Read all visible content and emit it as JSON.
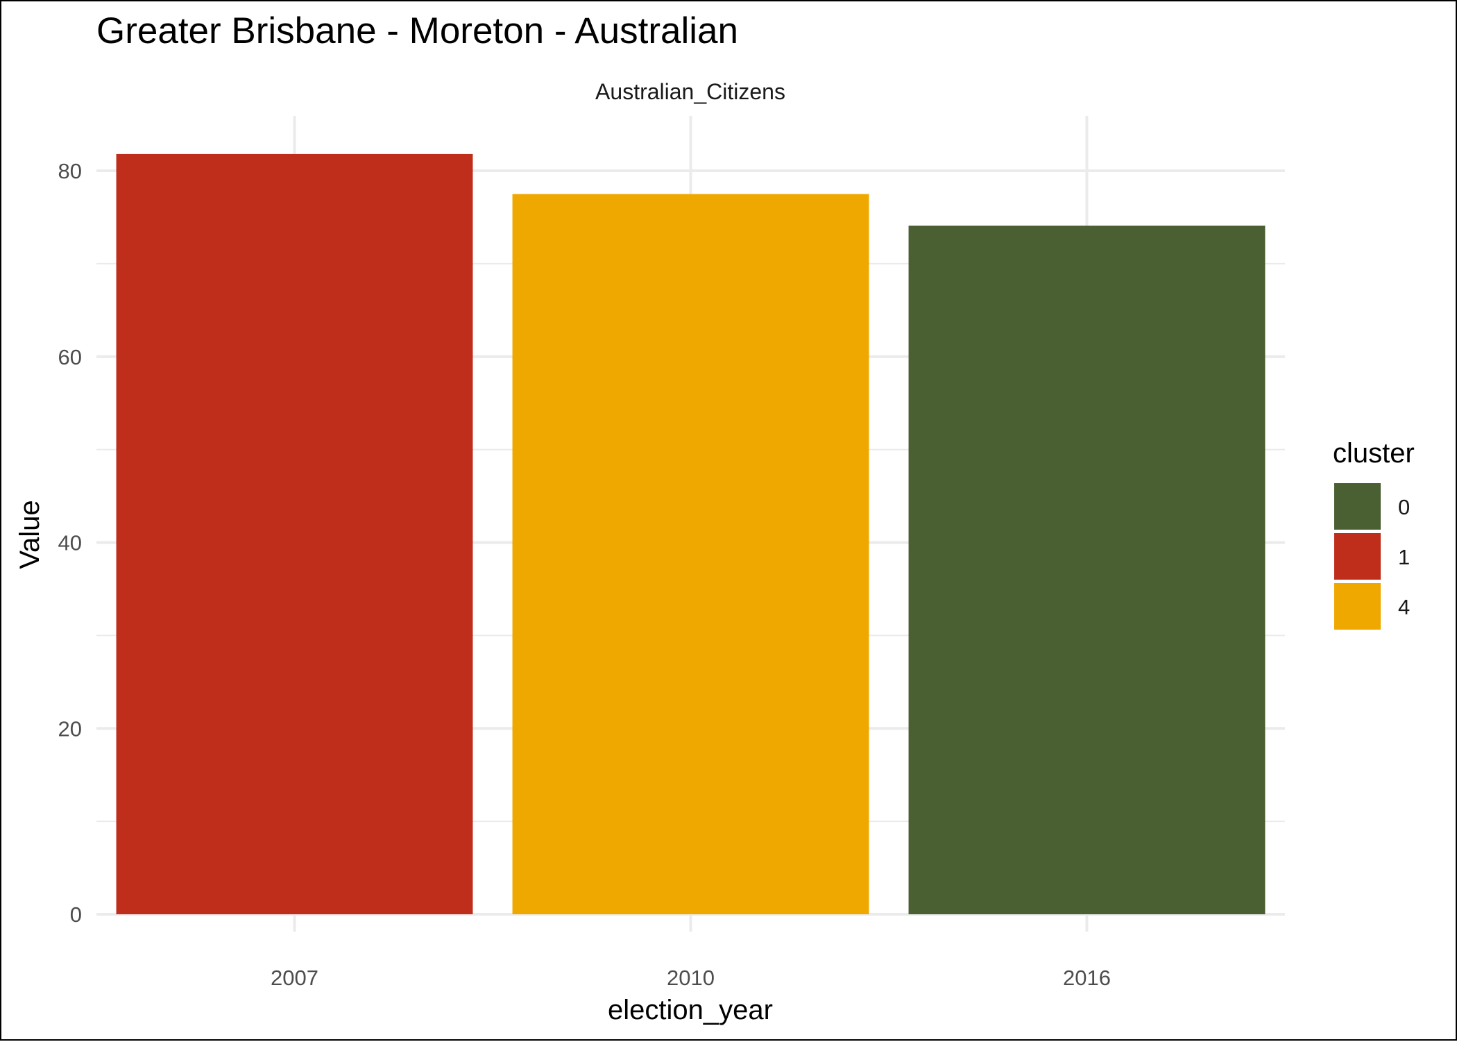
{
  "chart_data": {
    "type": "bar",
    "title": "Greater Brisbane - Moreton - Australian",
    "facet_label": "Australian_Citizens",
    "xlabel": "election_year",
    "ylabel": "Value",
    "categories": [
      "2007",
      "2010",
      "2016"
    ],
    "values": [
      81.8,
      77.5,
      74.1
    ],
    "bar_clusters": [
      "1",
      "4",
      "0"
    ],
    "ylim": [
      0,
      85
    ],
    "y_ticks": [
      0,
      20,
      40,
      60,
      80
    ],
    "grid": true,
    "legend": {
      "title": "cluster",
      "position": "right",
      "entries": [
        {
          "label": "0",
          "color": "#4A6032"
        },
        {
          "label": "1",
          "color": "#BE2E1A"
        },
        {
          "label": "4",
          "color": "#EFA800"
        }
      ]
    }
  }
}
